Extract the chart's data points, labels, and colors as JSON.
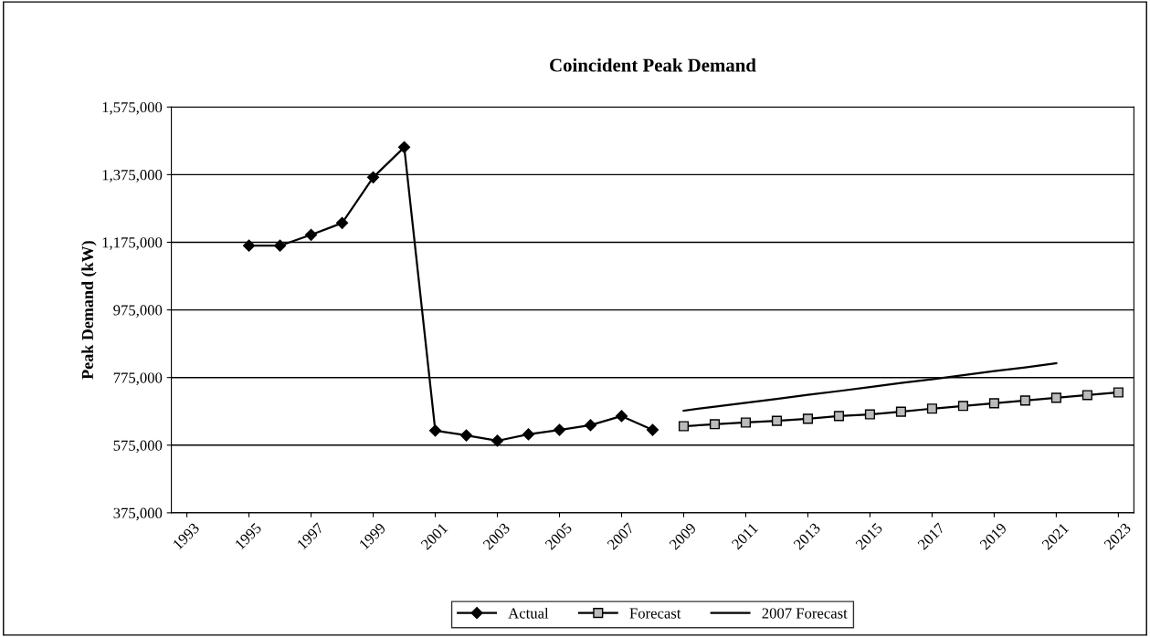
{
  "chart_data": {
    "type": "line",
    "title": "Coincident Peak Demand",
    "ylabel": "Peak Demand (kW)",
    "categories": [
      "1993",
      null,
      "1995",
      null,
      "1997",
      null,
      "1999",
      null,
      "2001",
      null,
      "2003",
      null,
      "2005",
      null,
      "2007",
      null,
      "2009",
      null,
      "2011",
      null,
      "2013",
      null,
      "2015",
      null,
      "2017",
      null,
      "2019",
      null,
      "2021",
      null,
      "2023"
    ],
    "series": [
      {
        "name": "Actual",
        "color": "#000000",
        "marker": "diamond",
        "values": [
          null,
          null,
          1165000,
          1165000,
          1197000,
          1232000,
          1367000,
          1456000,
          618000,
          604000,
          588000,
          607000,
          620000,
          634000,
          661000,
          620000,
          null,
          null,
          null,
          null,
          null,
          null,
          null,
          null,
          null,
          null,
          null,
          null,
          null,
          null,
          null
        ]
      },
      {
        "name": "Forecast",
        "color": "#000000",
        "marker": "square",
        "values": [
          null,
          null,
          null,
          null,
          null,
          null,
          null,
          null,
          null,
          null,
          null,
          null,
          null,
          null,
          null,
          null,
          631000,
          637000,
          642000,
          647000,
          653000,
          661000,
          666000,
          674000,
          683000,
          691000,
          699000,
          707000,
          715000,
          723000,
          731000
        ]
      },
      {
        "name": "2007 Forecast",
        "color": "#000000",
        "marker": "none",
        "values": [
          null,
          null,
          null,
          null,
          null,
          null,
          null,
          null,
          null,
          null,
          null,
          null,
          null,
          null,
          null,
          null,
          677000,
          689000,
          700000,
          712000,
          724000,
          735000,
          747000,
          759000,
          770000,
          782000,
          794000,
          805000,
          817000,
          null,
          null
        ]
      }
    ],
    "ylim": [
      375000,
      1575000
    ],
    "yticks": [
      {
        "value": 375000,
        "label": "375,000"
      },
      {
        "value": 575000,
        "label": "575,000"
      },
      {
        "value": 775000,
        "label": "775,000"
      },
      {
        "value": 975000,
        "label": "975,000"
      },
      {
        "value": 1175000,
        "label": "1,175,000"
      },
      {
        "value": 1375000,
        "label": "1,375,000"
      },
      {
        "value": 1575000,
        "label": "1,575,000"
      }
    ],
    "grid": "y",
    "legend": "bottom"
  }
}
